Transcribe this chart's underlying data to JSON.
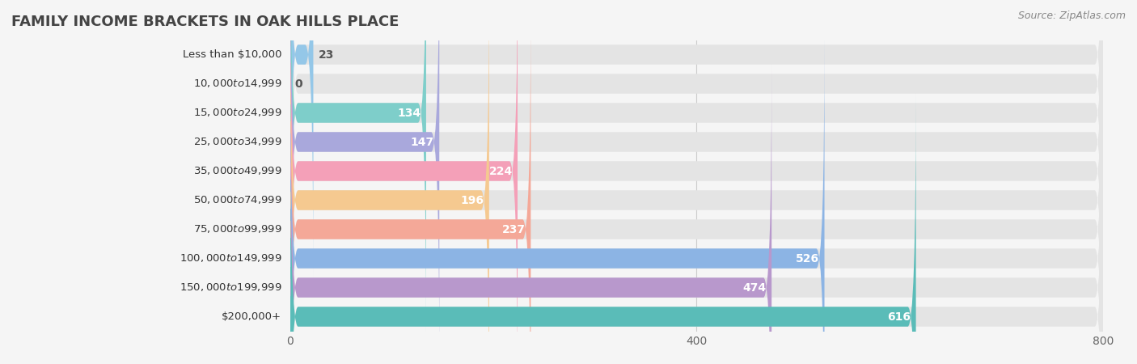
{
  "title": "FAMILY INCOME BRACKETS IN OAK HILLS PLACE",
  "source": "Source: ZipAtlas.com",
  "categories": [
    "Less than $10,000",
    "$10,000 to $14,999",
    "$15,000 to $24,999",
    "$25,000 to $34,999",
    "$35,000 to $49,999",
    "$50,000 to $74,999",
    "$75,000 to $99,999",
    "$100,000 to $149,999",
    "$150,000 to $199,999",
    "$200,000+"
  ],
  "values": [
    23,
    0,
    134,
    147,
    224,
    196,
    237,
    526,
    474,
    616
  ],
  "bar_colors": [
    "#94c7e8",
    "#d4a8cc",
    "#7ececa",
    "#a9a8dc",
    "#f4a0b8",
    "#f5c990",
    "#f4a898",
    "#8cb4e4",
    "#b898cc",
    "#5abcb8"
  ],
  "background_color": "#f5f5f5",
  "bar_bg_color": "#e4e4e4",
  "xlim": [
    0,
    800
  ],
  "xticks": [
    0,
    400,
    800
  ],
  "label_color_inside": "#ffffff",
  "label_color_outside": "#555555",
  "title_color": "#444444",
  "title_fontsize": 13,
  "bar_height": 0.68,
  "label_fontsize": 10,
  "cat_fontsize": 9.5,
  "source_fontsize": 9
}
